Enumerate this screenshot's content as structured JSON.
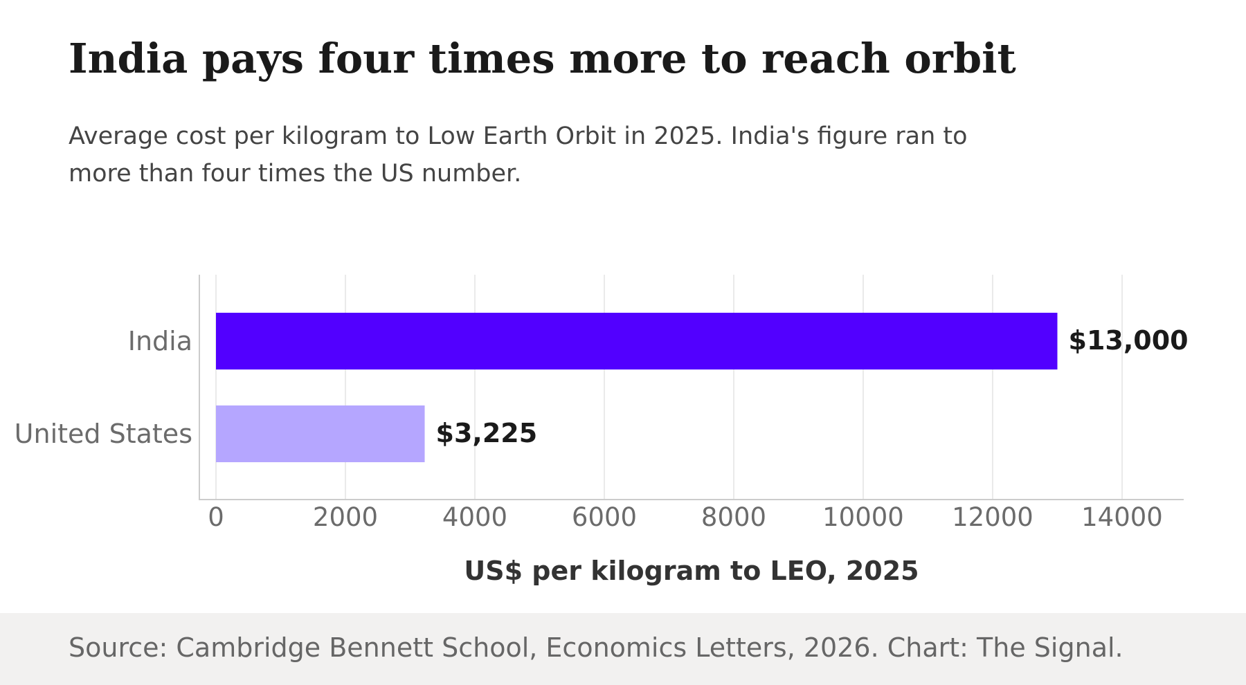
{
  "title": "India pays four times more to reach orbit",
  "subtitle": "Average cost per kilogram to Low Earth Orbit in 2025. India's figure ran to more than four times the US number.",
  "source": "Source: Cambridge Bennett School, Economics Letters, 2026. Chart: The Signal.",
  "chart_data": {
    "type": "bar",
    "orientation": "horizontal",
    "categories": [
      "India",
      "United States"
    ],
    "values": [
      13000,
      3225
    ],
    "value_labels": [
      "$13,000",
      "$3,225"
    ],
    "bar_colors": [
      "#5200ff",
      "#b5a6ff"
    ],
    "xlabel": "US$ per kilogram to LEO, 2025",
    "ylabel": "",
    "xlim": [
      0,
      15000
    ],
    "xticks": [
      0,
      2000,
      4000,
      6000,
      8000,
      10000,
      12000,
      14000
    ],
    "xtick_labels": [
      "0",
      "2000",
      "4000",
      "6000",
      "8000",
      "10000",
      "12000",
      "14000"
    ],
    "grid": "vertical",
    "legend": "none"
  },
  "colors": {
    "grid": "#e3e3e3",
    "axis": "#cccccc",
    "tick_text": "#6b6b6b",
    "value_text": "#1a1a1a",
    "axis_title": "#333333",
    "footer_bg": "#f2f1f0"
  }
}
